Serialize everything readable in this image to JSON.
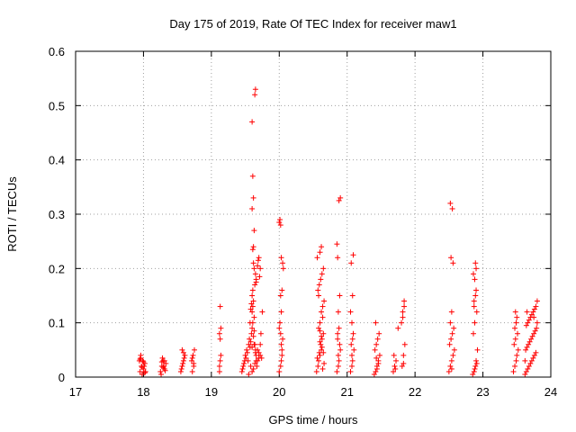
{
  "chart_data": {
    "type": "scatter",
    "title": "Day 175 of 2019, Rate Of TEC Index for receiver maw1",
    "xlabel": "GPS time / hours",
    "ylabel": "ROTI / TECUs",
    "xlim": [
      17,
      24
    ],
    "ylim": [
      0,
      0.6
    ],
    "xticks": [
      "17",
      "18",
      "19",
      "20",
      "21",
      "22",
      "23",
      "24"
    ],
    "yticks": [
      "0",
      "0.1",
      "0.2",
      "0.3",
      "0.4",
      "0.5",
      "0.6"
    ],
    "grid": true,
    "marker": "+",
    "color": "#ff0000",
    "series": [
      {
        "x": [
          17.95,
          17.97,
          17.99,
          18.0,
          18.02,
          17.96,
          17.98,
          18.01,
          17.94,
          18.03,
          17.96,
          18.0,
          17.98,
          18.02,
          17.95,
          18.25,
          18.27,
          18.29,
          18.31,
          18.33,
          18.26,
          18.28,
          18.3,
          18.32,
          18.27,
          18.29,
          18.31,
          18.55,
          18.57,
          18.59,
          18.61,
          18.56,
          18.58,
          18.6,
          18.57,
          18.59,
          18.72,
          18.74,
          18.71,
          18.73,
          18.75,
          18.72,
          18.74,
          19.12,
          19.13,
          19.14,
          19.13,
          19.12,
          19.14,
          19.13,
          19.12,
          19.45,
          19.47,
          19.49,
          19.5,
          19.52,
          19.46,
          19.48,
          19.51,
          19.53,
          19.55,
          19.57,
          19.58,
          19.56,
          19.54,
          19.59,
          19.6,
          19.61,
          19.62,
          19.63,
          19.64,
          19.65,
          19.66,
          19.67,
          19.68,
          19.7,
          19.72,
          19.74,
          19.6,
          19.61,
          19.62,
          19.6,
          19.63,
          19.58,
          19.59,
          19.57,
          19.61,
          19.64,
          19.66,
          19.65,
          19.63,
          19.62,
          19.7,
          19.72,
          19.71,
          19.69,
          19.68,
          19.66,
          19.75,
          19.73,
          19.55,
          19.6,
          19.62,
          19.58,
          19.64,
          19.66,
          19.7,
          19.72,
          19.65,
          19.68,
          19.6,
          19.63,
          19.61,
          19.62,
          19.63,
          19.6,
          19.62,
          19.61,
          19.6,
          19.64,
          19.65,
          20.0,
          20.02,
          20.03,
          20.04,
          20.05,
          20.0,
          20.01,
          20.03,
          20.02,
          20.04,
          20.06,
          20.05,
          20.03,
          20.02,
          20.01,
          20.0,
          20.04,
          20.03,
          20.02,
          20.55,
          20.57,
          20.58,
          20.6,
          20.62,
          20.64,
          20.66,
          20.56,
          20.59,
          20.61,
          20.63,
          20.65,
          20.58,
          20.6,
          20.62,
          20.64,
          20.66,
          20.57,
          20.59,
          20.61,
          20.63,
          20.65,
          20.56,
          20.6,
          20.62,
          20.64,
          20.58,
          20.6,
          20.62,
          20.6,
          20.63,
          20.65,
          20.85,
          20.87,
          20.88,
          20.9,
          20.86,
          20.88,
          20.87,
          20.89,
          20.86,
          20.85,
          20.88,
          20.9,
          20.87,
          20.89,
          20.86,
          21.05,
          21.07,
          21.08,
          21.1,
          21.06,
          21.08,
          21.09,
          21.07,
          21.05,
          21.08,
          21.06,
          21.09,
          21.07,
          21.4,
          21.42,
          21.44,
          21.46,
          21.48,
          21.41,
          21.43,
          21.45,
          21.47,
          21.42,
          21.44,
          21.46,
          21.43,
          21.68,
          21.7,
          21.72,
          21.69,
          21.71,
          21.75,
          21.8,
          21.82,
          21.84,
          21.81,
          21.83,
          21.85,
          21.82,
          21.84,
          21.83,
          22.5,
          22.52,
          22.54,
          22.56,
          22.58,
          22.51,
          22.53,
          22.55,
          22.57,
          22.52,
          22.54,
          22.56,
          22.53,
          22.55,
          22.52,
          22.54,
          22.85,
          22.87,
          22.89,
          22.9,
          22.92,
          22.86,
          22.88,
          22.91,
          22.87,
          22.89,
          22.9,
          22.88,
          22.86,
          22.9,
          22.89,
          22.87,
          22.91,
          22.88,
          23.45,
          23.47,
          23.49,
          23.5,
          23.52,
          23.46,
          23.48,
          23.51,
          23.47,
          23.49,
          23.5,
          23.48,
          23.62,
          23.64,
          23.66,
          23.68,
          23.7,
          23.72,
          23.74,
          23.76,
          23.78,
          23.63,
          23.65,
          23.67,
          23.69,
          23.71,
          23.73,
          23.75,
          23.77,
          23.79,
          23.64,
          23.66,
          23.68,
          23.7,
          23.72,
          23.74,
          23.76,
          23.78,
          23.8,
          23.65,
          23.75,
          23.8,
          23.62
        ],
        "y": [
          0.01,
          0.02,
          0.03,
          0.015,
          0.025,
          0.035,
          0.005,
          0.02,
          0.03,
          0.01,
          0.04,
          0.028,
          0.018,
          0.008,
          0.033,
          0.01,
          0.02,
          0.03,
          0.015,
          0.025,
          0.005,
          0.035,
          0.02,
          0.012,
          0.028,
          0.018,
          0.03,
          0.01,
          0.02,
          0.03,
          0.04,
          0.015,
          0.025,
          0.035,
          0.05,
          0.045,
          0.01,
          0.02,
          0.03,
          0.04,
          0.05,
          0.035,
          0.025,
          0.01,
          0.03,
          0.04,
          0.07,
          0.08,
          0.09,
          0.13,
          0.02,
          0.01,
          0.02,
          0.03,
          0.04,
          0.05,
          0.015,
          0.025,
          0.035,
          0.045,
          0.06,
          0.055,
          0.065,
          0.07,
          0.03,
          0.08,
          0.09,
          0.1,
          0.075,
          0.085,
          0.06,
          0.05,
          0.04,
          0.02,
          0.03,
          0.045,
          0.06,
          0.035,
          0.12,
          0.13,
          0.14,
          0.15,
          0.11,
          0.125,
          0.135,
          0.1,
          0.16,
          0.17,
          0.18,
          0.19,
          0.2,
          0.21,
          0.22,
          0.2,
          0.185,
          0.215,
          0.205,
          0.175,
          0.12,
          0.08,
          0.005,
          0.01,
          0.015,
          0.02,
          0.025,
          0.03,
          0.035,
          0.04,
          0.045,
          0.05,
          0.055,
          0.06,
          0.235,
          0.24,
          0.27,
          0.31,
          0.33,
          0.37,
          0.47,
          0.52,
          0.53,
          0.01,
          0.02,
          0.03,
          0.05,
          0.07,
          0.09,
          0.1,
          0.12,
          0.15,
          0.16,
          0.2,
          0.21,
          0.22,
          0.28,
          0.29,
          0.285,
          0.04,
          0.06,
          0.08,
          0.01,
          0.02,
          0.03,
          0.04,
          0.05,
          0.015,
          0.025,
          0.035,
          0.045,
          0.06,
          0.07,
          0.08,
          0.09,
          0.1,
          0.12,
          0.13,
          0.14,
          0.16,
          0.17,
          0.18,
          0.19,
          0.2,
          0.22,
          0.23,
          0.24,
          0.11,
          0.15,
          0.065,
          0.075,
          0.085,
          0.055,
          0.045,
          0.01,
          0.02,
          0.03,
          0.05,
          0.07,
          0.09,
          0.12,
          0.15,
          0.22,
          0.245,
          0.325,
          0.33,
          0.04,
          0.06,
          0.08,
          0.01,
          0.02,
          0.03,
          0.05,
          0.06,
          0.07,
          0.08,
          0.1,
          0.12,
          0.15,
          0.21,
          0.225,
          0.04,
          0.005,
          0.01,
          0.02,
          0.03,
          0.04,
          0.05,
          0.06,
          0.07,
          0.08,
          0.1,
          0.015,
          0.025,
          0.035,
          0.01,
          0.02,
          0.03,
          0.04,
          0.015,
          0.09,
          0.1,
          0.12,
          0.14,
          0.02,
          0.04,
          0.06,
          0.11,
          0.13,
          0.025,
          0.01,
          0.02,
          0.03,
          0.04,
          0.05,
          0.06,
          0.07,
          0.08,
          0.09,
          0.1,
          0.12,
          0.21,
          0.22,
          0.31,
          0.32,
          0.015,
          0.005,
          0.01,
          0.02,
          0.03,
          0.05,
          0.08,
          0.1,
          0.12,
          0.13,
          0.15,
          0.16,
          0.18,
          0.19,
          0.2,
          0.21,
          0.14,
          0.025,
          0.015,
          0.01,
          0.02,
          0.03,
          0.04,
          0.05,
          0.06,
          0.07,
          0.08,
          0.09,
          0.1,
          0.11,
          0.12,
          0.005,
          0.01,
          0.015,
          0.02,
          0.025,
          0.03,
          0.035,
          0.04,
          0.045,
          0.05,
          0.055,
          0.06,
          0.065,
          0.07,
          0.075,
          0.08,
          0.085,
          0.09,
          0.095,
          0.1,
          0.105,
          0.11,
          0.115,
          0.12,
          0.125,
          0.13,
          0.14,
          0.12,
          0.11,
          0.1,
          0.03
        ]
      }
    ]
  }
}
